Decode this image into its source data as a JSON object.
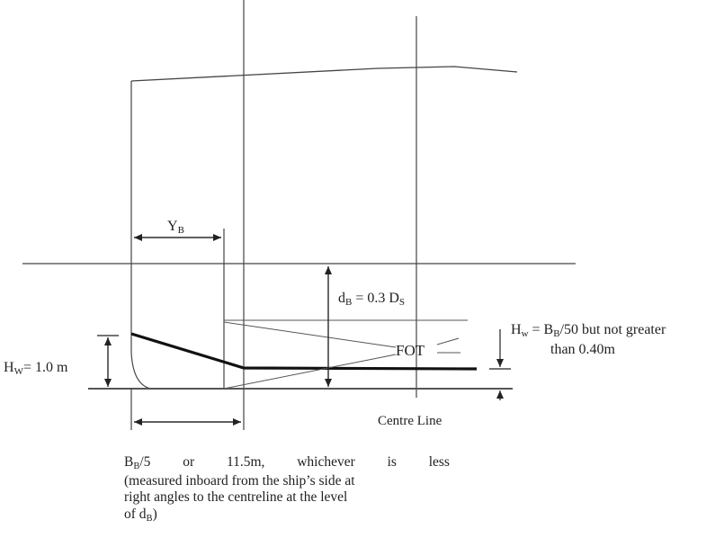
{
  "labels": {
    "yb": {
      "main": "Y",
      "sub": "B"
    },
    "db": {
      "main": "d",
      "sub": "B",
      "rest": " = 0.3 D",
      "sub2": "S"
    },
    "hw_left": {
      "main": "H",
      "sub": "W",
      "rest": "= 1.0 m"
    },
    "hw_right": {
      "main": "H",
      "sub": "w",
      "rest": " = B",
      "sub2": "B",
      "rest2": "/50 but not greater"
    },
    "hw_right_line2": "than 0.40m",
    "fot": "FOT",
    "centre_line": "Centre Line"
  },
  "note": {
    "line1_words": [
      "B|B|/5",
      "or",
      "11.5m,",
      "whichever",
      "is",
      "less"
    ],
    "line2": "(measured inboard from the ship’s side at",
    "line3": "right angles to the centreline at the level",
    "line4_prefix": "of d",
    "line4_sub": "B",
    "line4_suffix": ")"
  },
  "colors": {
    "line": "#3a3a3a",
    "thick": "#111111",
    "thin": "#555555"
  }
}
